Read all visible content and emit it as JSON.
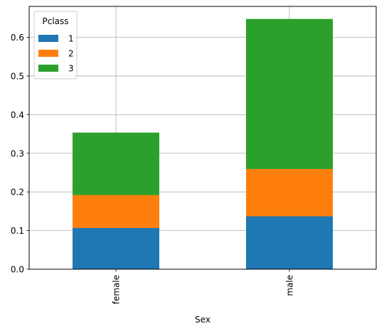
{
  "chart_data": {
    "type": "bar",
    "stacked": true,
    "categories": [
      "female",
      "male"
    ],
    "series": [
      {
        "name": "1",
        "values": [
          0.1066,
          0.1369
        ],
        "color": "#1f77b4"
      },
      {
        "name": "2",
        "values": [
          0.0853,
          0.1223
        ],
        "color": "#ff7f0e"
      },
      {
        "name": "3",
        "values": [
          0.1616,
          0.3883
        ],
        "color": "#2ca02c"
      }
    ],
    "title": "",
    "xlabel": "Sex",
    "ylabel": "",
    "ylim": [
      0,
      0.68
    ],
    "yticks": [
      "0.0",
      "0.1",
      "0.2",
      "0.3",
      "0.4",
      "0.5",
      "0.6"
    ],
    "grid": true,
    "legend": {
      "title": "Pclass",
      "placement": "top-left"
    },
    "x_tick_rotation": "vertical"
  }
}
